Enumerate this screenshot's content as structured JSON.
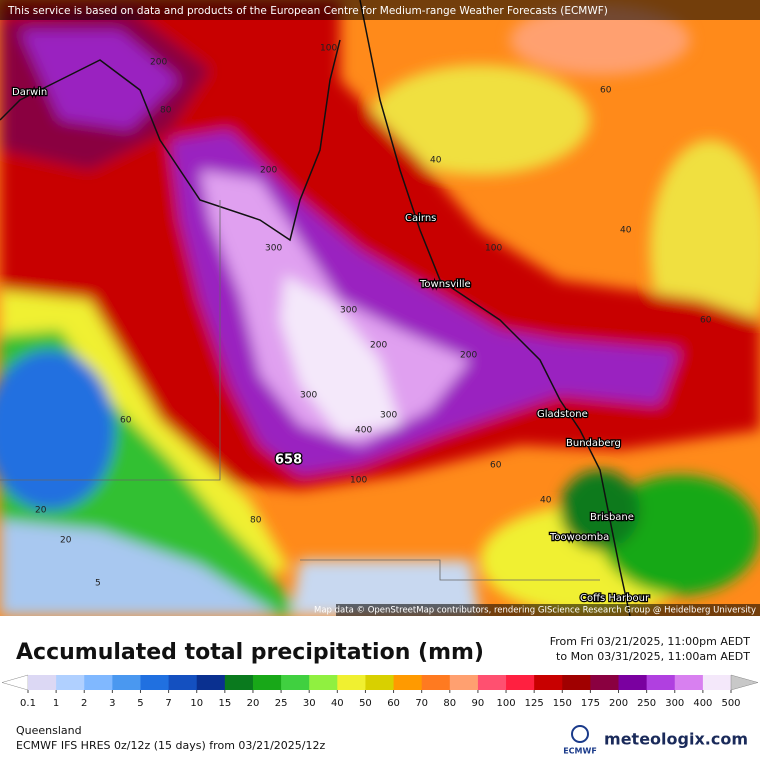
{
  "notice": "This service is based on data and products of the European Centre for Medium-range Weather Forecasts (ECMWF)",
  "map": {
    "cities": [
      "Darwin",
      "Cairns",
      "Townsville",
      "Gladstone",
      "Bundaberg",
      "Brisbane",
      "Toowoomba",
      "Coffs Harbour"
    ],
    "maximum": 658,
    "contour_labels": [
      200,
      100,
      80,
      200,
      300,
      300,
      200,
      400,
      300,
      300,
      200,
      100,
      60,
      40,
      40,
      60,
      100,
      60,
      40,
      20,
      5,
      60,
      80,
      20
    ]
  },
  "attribution": "Map data © OpenStreetMap contributors, rendering GIScience Research Group @ Heidelberg University",
  "title": "Accumulated total precipitation (mm)",
  "period": {
    "from": "From Fri 03/21/2025, 11:00pm AEDT",
    "to": "to Mon 03/31/2025, 11:00am AEDT"
  },
  "legend": {
    "levels": [
      0.1,
      1,
      2,
      3,
      5,
      7,
      10,
      15,
      20,
      25,
      30,
      40,
      50,
      60,
      70,
      80,
      90,
      100,
      125,
      150,
      175,
      200,
      250,
      300,
      400,
      500
    ],
    "colors": [
      "#ffffff",
      "#dcd8f4",
      "#b0d0ff",
      "#80b8ff",
      "#4a98f0",
      "#2070e0",
      "#1450c0",
      "#0a3090",
      "#0a7a1e",
      "#18a818",
      "#40d040",
      "#90f040",
      "#f0f030",
      "#d8d000",
      "#ff9a00",
      "#ff7a20",
      "#ffa070",
      "#ff5070",
      "#ff2040",
      "#c80000",
      "#a00000",
      "#8a0040",
      "#7a00a0",
      "#b040e0",
      "#d880f0",
      "#f4e8fa",
      "#c8c8c8"
    ]
  },
  "region": "Queensland",
  "model": "ECMWF IFS HRES 0z/12z (15 days) from  03/21/2025/12z",
  "logos": [
    "ECMWF",
    "meteologix.com"
  ]
}
